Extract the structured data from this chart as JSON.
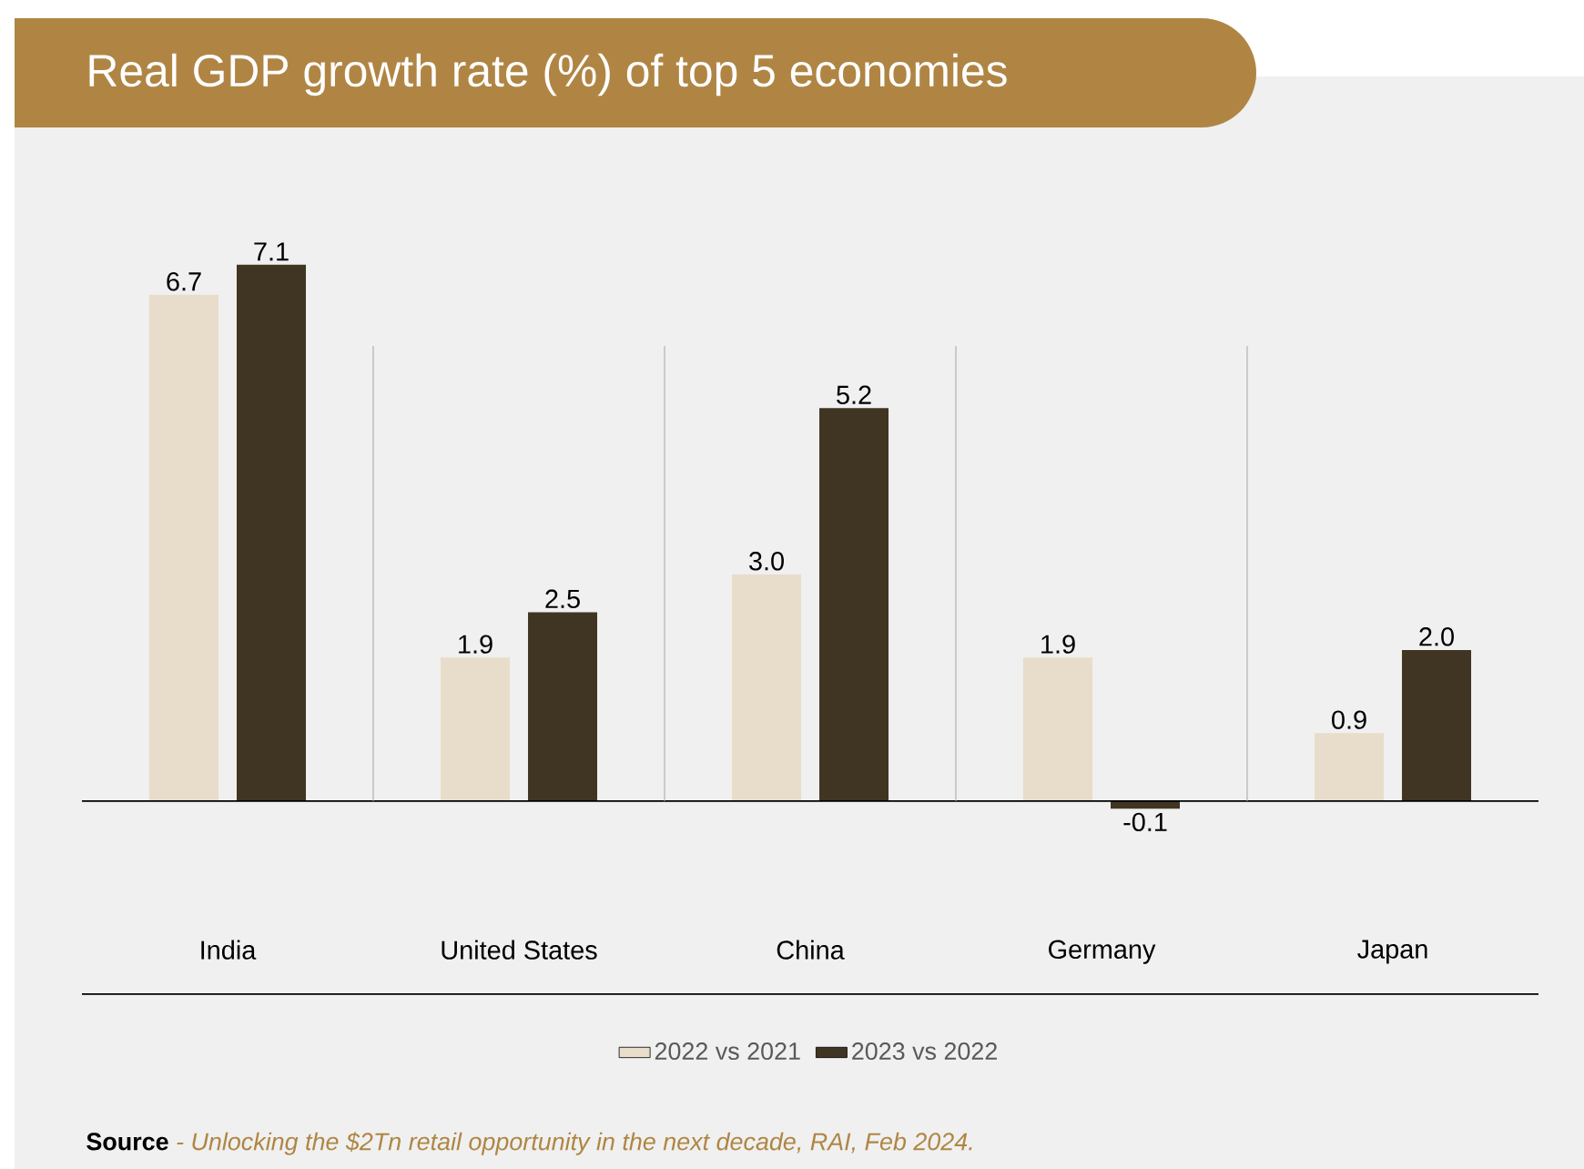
{
  "chart_data": {
    "type": "bar",
    "title": "Real GDP growth rate (%) of top 5 economies",
    "categories": [
      "India",
      "United States",
      "China",
      "Germany",
      "Japan"
    ],
    "series": [
      {
        "name": "2022 vs 2021",
        "color": "#e8dccb",
        "values": [
          6.7,
          1.9,
          3.0,
          1.9,
          0.9
        ],
        "value_labels": [
          "6.7",
          "1.9",
          "3.0",
          "1.9",
          "0.9"
        ]
      },
      {
        "name": "2023 vs 2022",
        "color": "#403523",
        "values": [
          7.1,
          2.5,
          5.2,
          -0.1,
          2.0
        ],
        "value_labels": [
          "7.1",
          "2.5",
          "5.2",
          "-0.1",
          "2.0"
        ]
      }
    ],
    "legend": "bottom",
    "annotations": [
      "Source",
      "- Unlocking the $2Tn retail opportunity in the next decade, RAI, Feb 2024."
    ]
  }
}
